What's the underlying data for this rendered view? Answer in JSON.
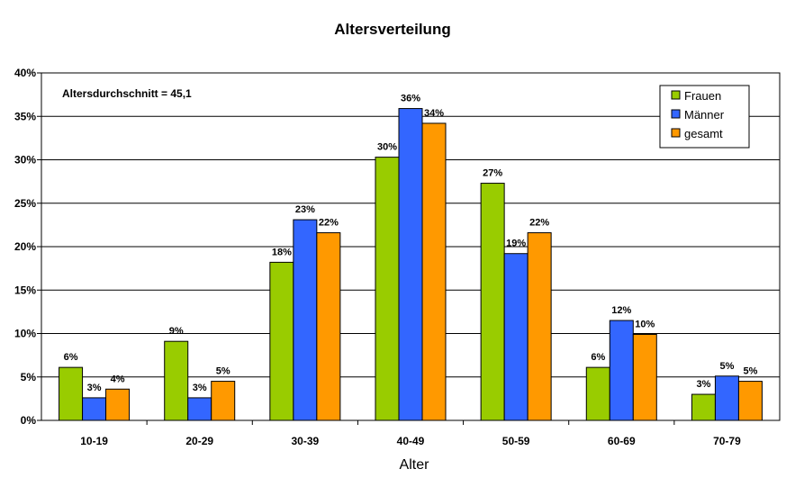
{
  "chart_data": {
    "type": "bar",
    "title": "Altersverteilung",
    "xlabel": "Alter",
    "ylabel": "",
    "ylim": [
      0,
      40
    ],
    "yticks": [
      "0%",
      "5%",
      "10%",
      "15%",
      "20%",
      "25%",
      "30%",
      "35%",
      "40%"
    ],
    "categories": [
      "10-19",
      "20-29",
      "30-39",
      "40-49",
      "50-59",
      "60-69",
      "70-79"
    ],
    "series": [
      {
        "name": "Frauen",
        "color": "#99CC00",
        "values": [
          6.1,
          9.1,
          18.2,
          30.3,
          27.3,
          6.1,
          3.0
        ],
        "labels": [
          "6%",
          "9%",
          "18%",
          "30%",
          "27%",
          "6%",
          "3%"
        ]
      },
      {
        "name": "Männer",
        "color": "#3366FF",
        "values": [
          2.6,
          2.6,
          23.1,
          35.9,
          19.2,
          11.5,
          5.1
        ],
        "labels": [
          "3%",
          "3%",
          "23%",
          "36%",
          "19%",
          "12%",
          "5%"
        ]
      },
      {
        "name": "gesamt",
        "color": "#FF9900",
        "values": [
          3.6,
          4.5,
          21.6,
          34.2,
          21.6,
          9.9,
          4.5
        ],
        "labels": [
          "4%",
          "5%",
          "22%",
          "34%",
          "22%",
          "10%",
          "5%"
        ]
      }
    ],
    "annotation": "Altersdurchschnitt = 45,1",
    "grid": true,
    "legend_position": "top-right"
  }
}
